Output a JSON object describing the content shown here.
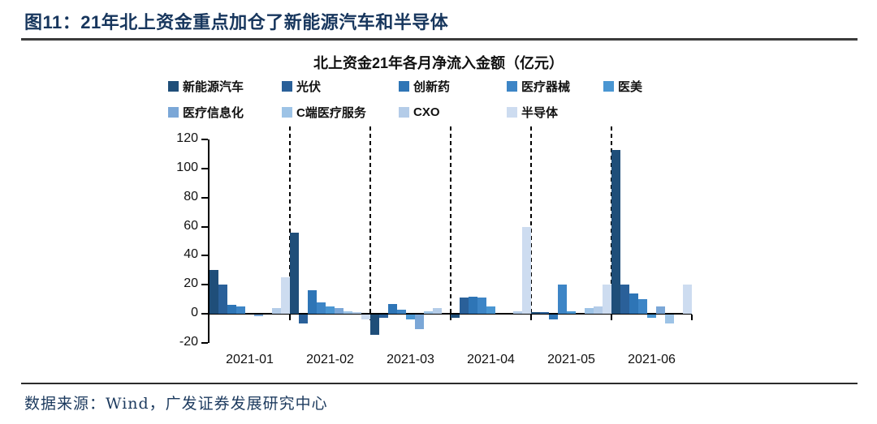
{
  "header": {
    "title": "图11：21年北上资金重点加仓了新能源汽车和半导体"
  },
  "footer": {
    "source": "数据来源：Wind，广发证券发展研究中心"
  },
  "colors": {
    "accent_navy": "#17365D",
    "axis": "#000000",
    "background": "#FFFFFF"
  },
  "chart_data": {
    "type": "bar",
    "title": "北上资金21年各月净流入金额（亿元）",
    "xlabel": "",
    "ylabel": "",
    "ylim": [
      -20,
      120
    ],
    "yticks": [
      120,
      100,
      80,
      60,
      40,
      20,
      0,
      -20
    ],
    "grid": false,
    "legend_position": "top-left",
    "separator_style": "dashed vertical lines between month groups",
    "categories": [
      "2021-01",
      "2021-02",
      "2021-03",
      "2021-04",
      "2021-05",
      "2021-06"
    ],
    "series": [
      {
        "name": "新能源汽车",
        "color": "#1F4E79",
        "values": [
          30,
          56,
          -14,
          -2,
          1,
          113
        ]
      },
      {
        "name": "光伏",
        "color": "#2A6099",
        "values": [
          20,
          -6,
          -2,
          11,
          1,
          20
        ]
      },
      {
        "name": "创新药",
        "color": "#2E75B6",
        "values": [
          6,
          16,
          7,
          12,
          -3,
          14
        ]
      },
      {
        "name": "医疗器械",
        "color": "#3D85C6",
        "values": [
          5,
          8,
          3,
          11,
          20,
          10
        ]
      },
      {
        "name": "医美",
        "color": "#4A96D2",
        "values": [
          0,
          5,
          -3,
          5,
          2,
          -2
        ]
      },
      {
        "name": "医疗信息化",
        "color": "#7BA7D7",
        "values": [
          -1,
          4,
          -10,
          0,
          0,
          5
        ]
      },
      {
        "name": "C端医疗服务",
        "color": "#9DC3E6",
        "values": [
          0,
          2,
          2,
          0,
          4,
          -6
        ]
      },
      {
        "name": "CXO",
        "color": "#B4CCE8",
        "values": [
          4,
          1,
          4,
          2,
          5,
          0
        ]
      },
      {
        "name": "半导体",
        "color": "#CDDCF0",
        "values": [
          25,
          -3,
          0,
          60,
          20,
          20
        ]
      }
    ]
  }
}
